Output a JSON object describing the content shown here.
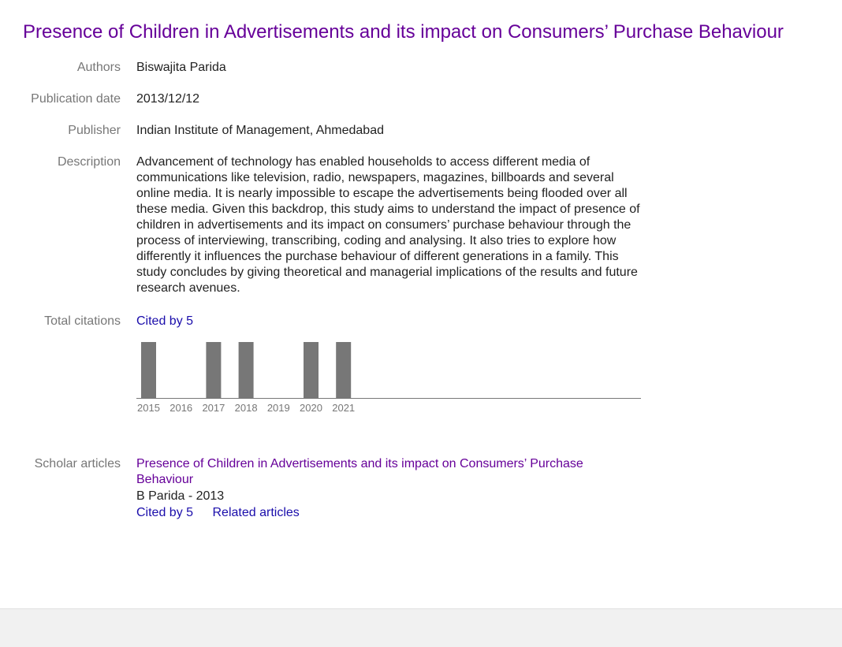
{
  "title": "Presence of Children in Advertisements and its impact on Consumers’ Purchase Behaviour",
  "fields": {
    "authors": {
      "label": "Authors",
      "value": "Biswajita Parida"
    },
    "publication_date": {
      "label": "Publication date",
      "value": "2013/12/12"
    },
    "publisher": {
      "label": "Publisher",
      "value": "Indian Institute of Management, Ahmedabad"
    },
    "description": {
      "label": "Description",
      "value": "Advancement of technology has enabled households to access different media of communications like television, radio, newspapers, magazines, billboards and several online media. It is nearly impossible to escape the advertisements being flooded over all these media. Given this backdrop, this study aims to understand the impact of presence of children in advertisements and its impact on consumers’ purchase behaviour through the process of interviewing, transcribing, coding and analysing. It also tries to explore how differently it influences the purchase behaviour of different generations in a family. This study concludes by giving theoretical and managerial implications of the results and future research avenues."
    },
    "total_citations": {
      "label": "Total citations",
      "cited_by": "Cited by 5"
    },
    "scholar_articles": {
      "label": "Scholar articles",
      "article_title": "Presence of Children in Advertisements and its impact on Consumers’ Purchase Behaviour",
      "author_year": "B Parida - 2013",
      "cited_by": "Cited by 5",
      "related": "Related articles"
    }
  },
  "chart_data": {
    "type": "bar",
    "categories": [
      "2015",
      "2016",
      "2017",
      "2018",
      "2019",
      "2020",
      "2021"
    ],
    "values": [
      1,
      0,
      1,
      1,
      0,
      1,
      1
    ],
    "ylim": [
      0,
      1
    ],
    "grid": false,
    "bar_color": "#777777"
  },
  "colors": {
    "title": "#660099",
    "link": "#1a0dab",
    "label": "#777777",
    "text": "#222222",
    "footer": "#f1f1f1"
  }
}
